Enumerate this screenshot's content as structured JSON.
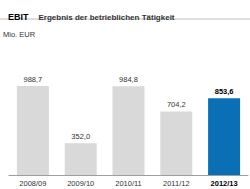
{
  "chart_data": {
    "type": "bar",
    "title": "EBIT",
    "subtitle": "Ergebnis der betrieblichen Tätigkeit",
    "y_label": "Mio. EUR",
    "categories": [
      "2008/09",
      "2009/10",
      "2010/11",
      "2011/12",
      "2012/13"
    ],
    "values": [
      988.7,
      352.0,
      984.8,
      704.2,
      853.6
    ],
    "value_labels": [
      "988,7",
      "352,0",
      "984,8",
      "704,2",
      "853,6"
    ],
    "colors": [
      "#d9d9d9",
      "#d9d9d9",
      "#d9d9d9",
      "#d9d9d9",
      "#0a6fb4"
    ],
    "ylim": [
      0,
      1500
    ],
    "yticks": [
      0,
      1500
    ],
    "grid": false,
    "data_labels": true,
    "tick_labels": "x"
  }
}
